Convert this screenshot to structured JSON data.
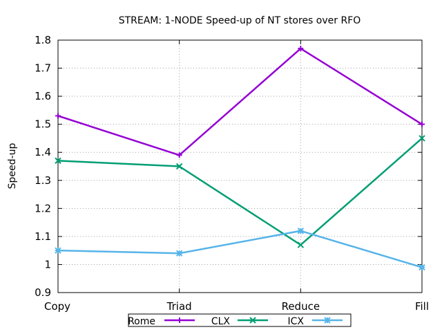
{
  "chart_data": {
    "type": "line",
    "title": "STREAM: 1-NODE Speed-up of NT stores over RFO",
    "xlabel": "",
    "ylabel": "Speed-up",
    "categories": [
      "Copy",
      "Triad",
      "Reduce",
      "Fill"
    ],
    "ylim": [
      0.9,
      1.8
    ],
    "yticks": [
      "0.9",
      "1",
      "1.1",
      "1.2",
      "1.3",
      "1.4",
      "1.5",
      "1.6",
      "1.7",
      "1.8"
    ],
    "grid": true,
    "legend_position": "bottom",
    "series": [
      {
        "name": "Rome",
        "values": [
          1.53,
          1.39,
          1.77,
          1.5
        ],
        "color": "#9400d3",
        "marker": "plus"
      },
      {
        "name": "CLX",
        "values": [
          1.37,
          1.35,
          1.07,
          1.45
        ],
        "color": "#009e73",
        "marker": "cross"
      },
      {
        "name": "ICX",
        "values": [
          1.05,
          1.04,
          1.12,
          0.99
        ],
        "color": "#56b4e9",
        "marker": "star"
      }
    ]
  }
}
